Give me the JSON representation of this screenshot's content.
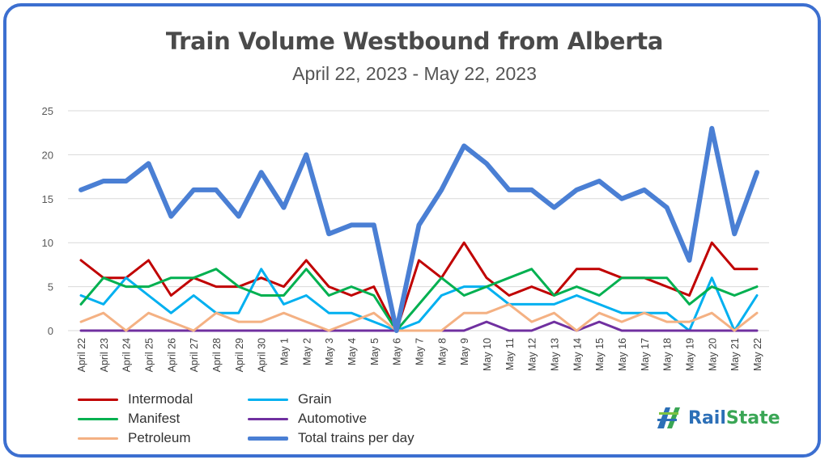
{
  "chart_data": {
    "type": "line",
    "title": "Train Volume Westbound from Alberta",
    "subtitle": "April 22, 2023 - May 22, 2023",
    "xlabel": "",
    "ylabel": "",
    "ylim": [
      0,
      25
    ],
    "yticks": [
      "0",
      "5",
      "10",
      "15",
      "20",
      "25"
    ],
    "grid": true,
    "legend_position": "bottom-left",
    "categories": [
      "April 22",
      "April 23",
      "April 24",
      "April 25",
      "April 26",
      "April 27",
      "April 28",
      "April 29",
      "April 30",
      "May 1",
      "May 2",
      "May 3",
      "May 4",
      "May 5",
      "May 6",
      "May 7",
      "May 8",
      "May 9",
      "May 10",
      "May 11",
      "May 12",
      "May 13",
      "May 14",
      "May 15",
      "May 16",
      "May 17",
      "May 18",
      "May 19",
      "May 20",
      "May 21",
      "May 22"
    ],
    "series": [
      {
        "name": "Intermodal",
        "color": "#c00000",
        "width": 3,
        "values": [
          8,
          6,
          6,
          8,
          4,
          6,
          5,
          5,
          6,
          5,
          8,
          5,
          4,
          5,
          0,
          8,
          6,
          10,
          6,
          4,
          5,
          4,
          7,
          7,
          6,
          6,
          5,
          4,
          10,
          7,
          7
        ]
      },
      {
        "name": "Grain",
        "color": "#00b0f0",
        "width": 3,
        "values": [
          4,
          3,
          6,
          4,
          2,
          4,
          2,
          2,
          7,
          3,
          4,
          2,
          2,
          1,
          0,
          1,
          4,
          5,
          5,
          3,
          3,
          3,
          4,
          3,
          2,
          2,
          2,
          0,
          6,
          0,
          4
        ]
      },
      {
        "name": "Manifest",
        "color": "#00b050",
        "width": 3,
        "values": [
          3,
          6,
          5,
          5,
          6,
          6,
          7,
          5,
          4,
          4,
          7,
          4,
          5,
          4,
          0,
          3,
          6,
          4,
          5,
          6,
          7,
          4,
          5,
          4,
          6,
          6,
          6,
          3,
          5,
          4,
          5
        ]
      },
      {
        "name": "Automotive",
        "color": "#7030a0",
        "width": 3,
        "values": [
          0,
          0,
          0,
          0,
          0,
          0,
          0,
          0,
          0,
          0,
          0,
          0,
          0,
          0,
          0,
          0,
          0,
          0,
          1,
          0,
          0,
          1,
          0,
          1,
          0,
          0,
          0,
          0,
          0,
          0,
          0
        ]
      },
      {
        "name": "Petroleum",
        "color": "#f4b183",
        "width": 3,
        "values": [
          1,
          2,
          0,
          2,
          1,
          0,
          2,
          1,
          1,
          2,
          1,
          0,
          1,
          2,
          0,
          0,
          0,
          2,
          2,
          3,
          1,
          2,
          0,
          2,
          1,
          2,
          1,
          1,
          2,
          0,
          2
        ]
      },
      {
        "name": "Total trains per day",
        "color": "#4a7fd4",
        "width": 6,
        "values": [
          16,
          17,
          17,
          19,
          13,
          16,
          16,
          13,
          18,
          14,
          20,
          11,
          12,
          12,
          0,
          12,
          16,
          21,
          19,
          16,
          16,
          14,
          16,
          17,
          15,
          16,
          14,
          8,
          23,
          11,
          18
        ]
      }
    ]
  },
  "logo": {
    "word1": "Rail",
    "word2": "State"
  }
}
